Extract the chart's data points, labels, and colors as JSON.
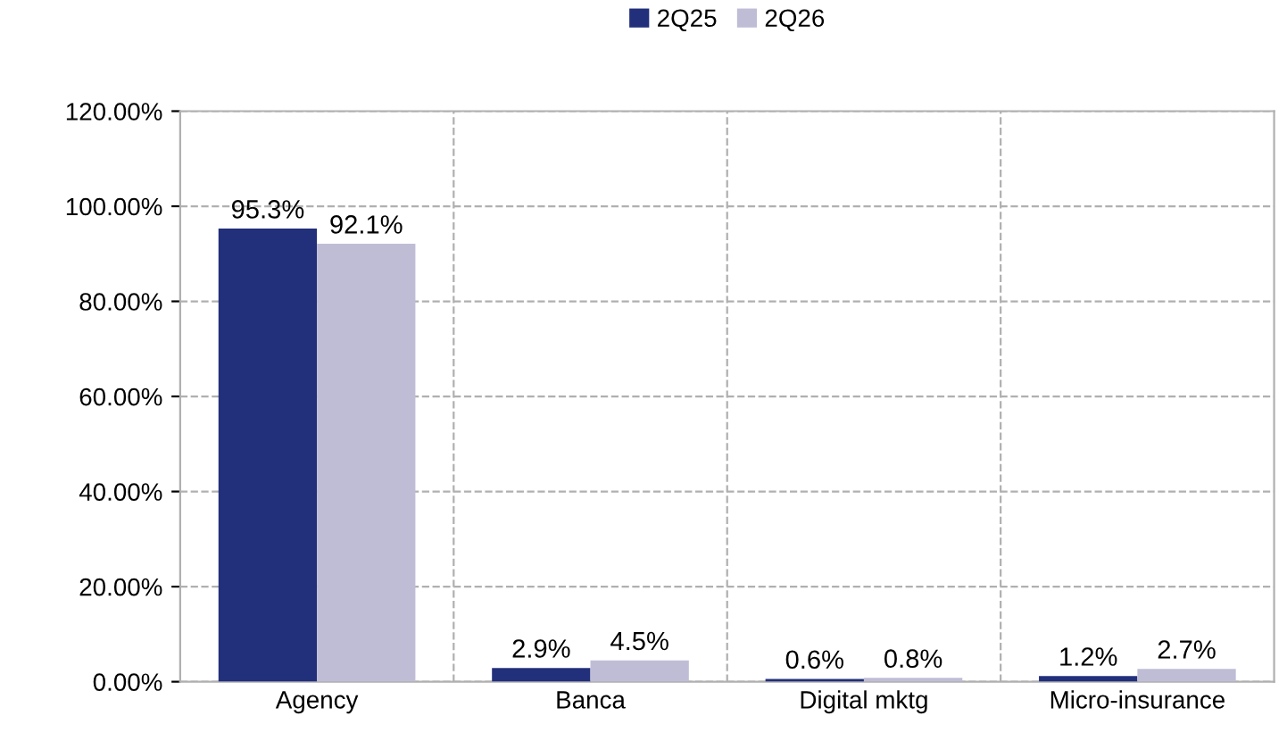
{
  "chart_data": {
    "type": "bar",
    "categories": [
      "Agency",
      "Banca",
      "Digital mktg",
      "Micro-insurance"
    ],
    "series": [
      {
        "name": "2Q25",
        "color": "#222f7a",
        "values": [
          95.3,
          2.9,
          0.6,
          1.2
        ],
        "value_labels": [
          "95.3%",
          "2.9%",
          "0.6%",
          "1.2%"
        ]
      },
      {
        "name": "2Q26",
        "color": "#bfbdd6",
        "values": [
          92.1,
          4.5,
          0.8,
          2.7
        ],
        "value_labels": [
          "92.1%",
          "4.5%",
          "0.8%",
          "2.7%"
        ]
      }
    ],
    "ylim": [
      0,
      120
    ],
    "yticks": [
      {
        "value": 0,
        "label": "0.00%"
      },
      {
        "value": 20,
        "label": "20.00%"
      },
      {
        "value": 40,
        "label": "40.00%"
      },
      {
        "value": 60,
        "label": "60.00%"
      },
      {
        "value": 80,
        "label": "80.00%"
      },
      {
        "value": 100,
        "label": "100.00%"
      },
      {
        "value": 120,
        "label": "120.00%"
      }
    ],
    "grid": true,
    "legend": "top"
  }
}
